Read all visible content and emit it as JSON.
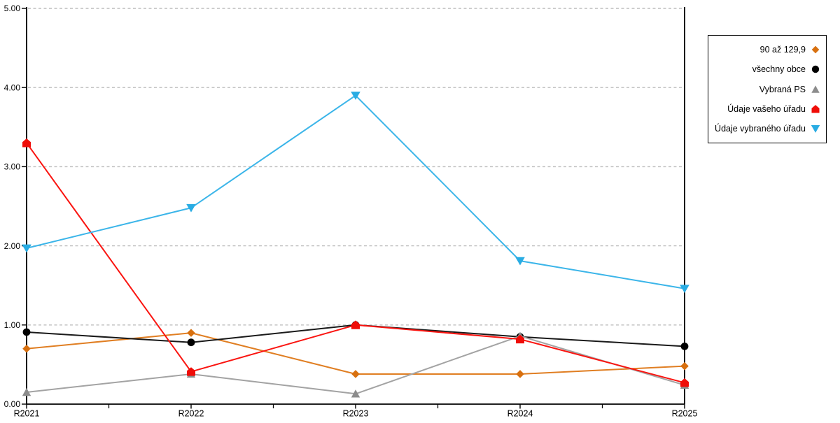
{
  "chart_data": {
    "type": "line",
    "title": "",
    "xlabel": "",
    "ylabel": "",
    "categories": [
      "R2021",
      "R2022",
      "R2023",
      "R2024",
      "R2025"
    ],
    "series": [
      {
        "name": "90 až 129,9",
        "marker": "diamond",
        "marker_color": "#D8700F",
        "line_color": "#E07E22",
        "values": [
          0.7,
          0.9,
          0.38,
          0.38,
          0.48
        ]
      },
      {
        "name": "všechny obce",
        "marker": "circle",
        "marker_color": "#000000",
        "line_color": "#1A1A1A",
        "values": [
          0.91,
          0.78,
          1.0,
          0.85,
          0.73
        ]
      },
      {
        "name": "Vybraná PS",
        "marker": "triangle-up",
        "marker_color": "#8C8C8C",
        "line_color": "#A3A3A3",
        "values": [
          0.15,
          0.38,
          0.13,
          0.86,
          0.24
        ]
      },
      {
        "name": "Údaje vašeho úřadu",
        "marker": "pentagon",
        "marker_color": "#EF0D08",
        "line_color": "#FA1410",
        "values": [
          3.3,
          0.41,
          1.0,
          0.82,
          0.27
        ]
      },
      {
        "name": "Údaje vybraného úřadu",
        "marker": "triangle-down",
        "marker_color": "#29ACE3",
        "line_color": "#3BB5E9",
        "values": [
          1.97,
          2.48,
          3.9,
          1.81,
          1.46
        ]
      }
    ],
    "ylim": [
      0,
      5
    ],
    "y_tick_labels": [
      "0.00",
      "1.00",
      "2.00",
      "3.00",
      "4.00",
      "5.00"
    ],
    "grid": "horizontal dashed light-gray, minor x ticks at midpoints",
    "gridline_color": "#BDBDBD",
    "axis_color": "#000000",
    "legend_position": "right, boxed, right-aligned text with marker on right"
  }
}
